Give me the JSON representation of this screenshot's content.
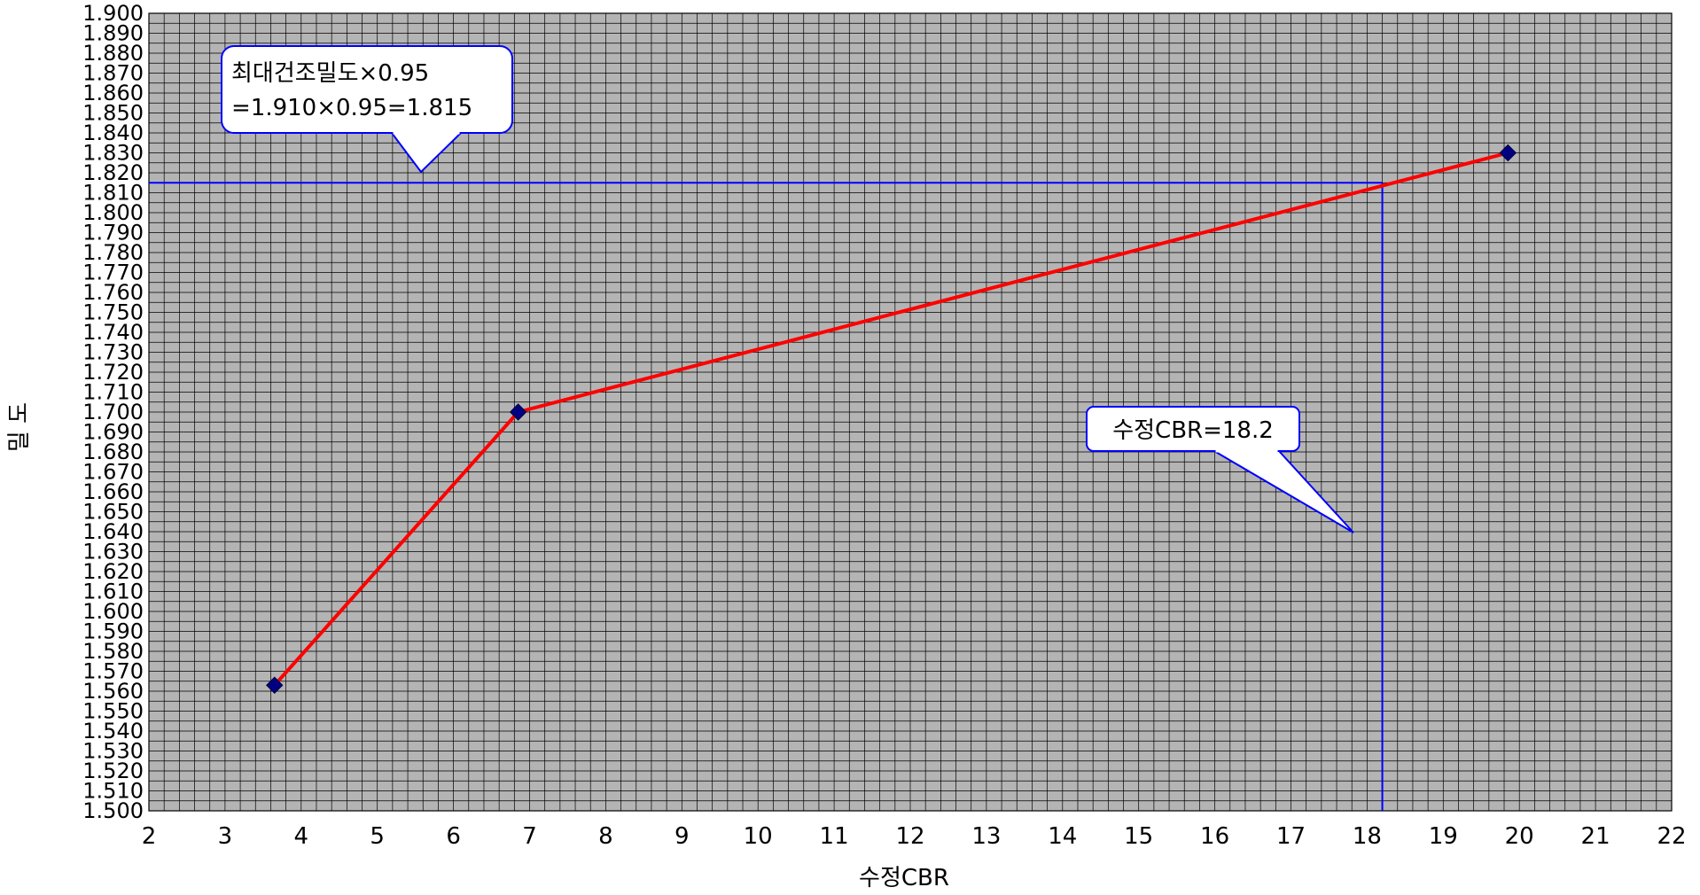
{
  "chart_data": {
    "type": "line",
    "xlabel": "수정CBR",
    "ylabel": "밀 도",
    "xlim": [
      2,
      22
    ],
    "ylim": [
      1.5,
      1.9
    ],
    "x_ticks": [
      2,
      3,
      4,
      5,
      6,
      7,
      8,
      9,
      10,
      11,
      12,
      13,
      14,
      15,
      16,
      17,
      18,
      19,
      20,
      21,
      22
    ],
    "y_ticks": [
      "1.500",
      "1.510",
      "1.520",
      "1.530",
      "1.540",
      "1.550",
      "1.560",
      "1.570",
      "1.580",
      "1.590",
      "1.600",
      "1.610",
      "1.620",
      "1.630",
      "1.640",
      "1.650",
      "1.660",
      "1.670",
      "1.680",
      "1.690",
      "1.700",
      "1.710",
      "1.720",
      "1.730",
      "1.740",
      "1.750",
      "1.760",
      "1.770",
      "1.780",
      "1.790",
      "1.800",
      "1.810",
      "1.820",
      "1.830",
      "1.840",
      "1.850",
      "1.860",
      "1.870",
      "1.880",
      "1.890",
      "1.900"
    ],
    "grid": {
      "major_x_step": 1,
      "minor_x_step": 0.2,
      "major_y_step": 0.01,
      "minor_y_step": 0.005
    },
    "colors": {
      "plot_background": "#b4b4b4",
      "grid": "#000000",
      "series_line": "#ff0000",
      "marker": "#000080",
      "reference_line": "#0000ff",
      "callout_border": "#0000ff",
      "callout_fill": "#ffffff"
    },
    "series": [
      {
        "marker": "diamond",
        "points": [
          {
            "x": 3.65,
            "y": 1.563
          },
          {
            "x": 6.85,
            "y": 1.7
          },
          {
            "x": 19.85,
            "y": 1.83
          }
        ]
      }
    ],
    "reference_lines": {
      "horizontal_y": 1.815,
      "vertical_x": 18.2
    },
    "annotations": [
      {
        "lines": [
          "최대건조밀도×0.95",
          "=1.910×0.95=1.815"
        ]
      },
      {
        "lines": [
          "수정CBR=18.2"
        ]
      }
    ]
  }
}
